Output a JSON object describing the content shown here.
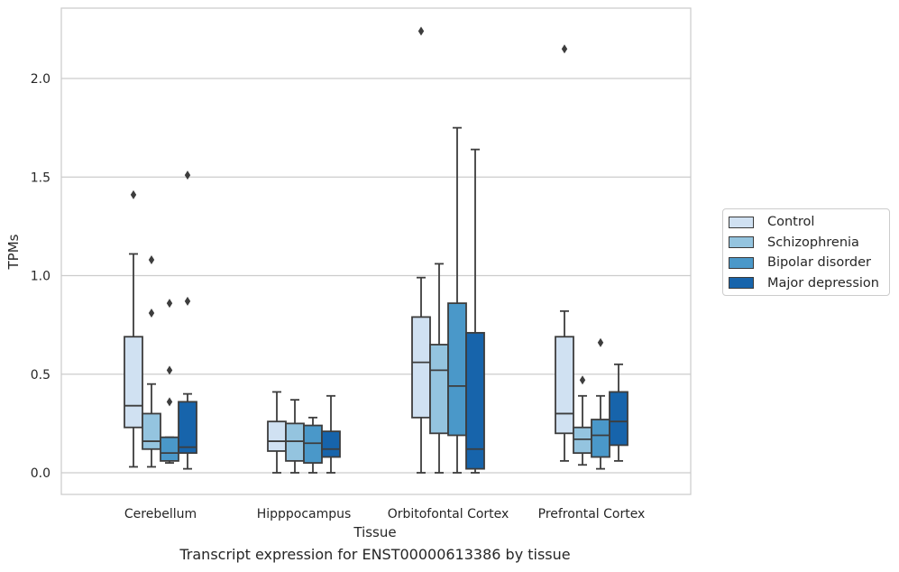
{
  "chart_data": {
    "type": "box",
    "xlabel": "Tissue",
    "ylabel": "TPMs",
    "caption": "Transcript expression for ENST00000613386 by tissue",
    "ylim": [
      -0.11,
      2.36
    ],
    "yticks": [
      "0.0",
      "0.5",
      "1.0",
      "1.5",
      "2.0"
    ],
    "grid": "horizontal",
    "legend_position": "right",
    "categories": [
      "Cerebellum",
      "Hipppocampus",
      "Orbitofontal Cortex",
      "Prefrontal Cortex"
    ],
    "series": [
      {
        "name": "Control",
        "color": "#d0e1f2",
        "boxes": [
          {
            "whisker_low": 0.03,
            "q1": 0.23,
            "median": 0.34,
            "q3": 0.69,
            "whisker_high": 1.11,
            "outliers": [
              1.41
            ]
          },
          {
            "whisker_low": 0.0,
            "q1": 0.11,
            "median": 0.16,
            "q3": 0.26,
            "whisker_high": 0.41,
            "outliers": []
          },
          {
            "whisker_low": 0.0,
            "q1": 0.28,
            "median": 0.56,
            "q3": 0.79,
            "whisker_high": 0.99,
            "outliers": [
              2.24
            ]
          },
          {
            "whisker_low": 0.06,
            "q1": 0.2,
            "median": 0.3,
            "q3": 0.69,
            "whisker_high": 0.82,
            "outliers": [
              2.15
            ]
          }
        ]
      },
      {
        "name": "Schizophrenia",
        "color": "#94c4df",
        "boxes": [
          {
            "whisker_low": 0.03,
            "q1": 0.12,
            "median": 0.16,
            "q3": 0.3,
            "whisker_high": 0.45,
            "outliers": [
              1.08,
              0.81
            ]
          },
          {
            "whisker_low": 0.0,
            "q1": 0.06,
            "median": 0.16,
            "q3": 0.25,
            "whisker_high": 0.37,
            "outliers": []
          },
          {
            "whisker_low": 0.0,
            "q1": 0.2,
            "median": 0.52,
            "q3": 0.65,
            "whisker_high": 1.06,
            "outliers": []
          },
          {
            "whisker_low": 0.04,
            "q1": 0.1,
            "median": 0.17,
            "q3": 0.23,
            "whisker_high": 0.39,
            "outliers": [
              0.47
            ]
          }
        ]
      },
      {
        "name": "Bipolar disorder",
        "color": "#4a98c9",
        "boxes": [
          {
            "whisker_low": 0.05,
            "q1": 0.06,
            "median": 0.1,
            "q3": 0.18,
            "whisker_high": 0.18,
            "outliers": [
              0.86,
              0.52,
              0.36
            ]
          },
          {
            "whisker_low": 0.0,
            "q1": 0.05,
            "median": 0.15,
            "q3": 0.24,
            "whisker_high": 0.28,
            "outliers": []
          },
          {
            "whisker_low": 0.0,
            "q1": 0.19,
            "median": 0.44,
            "q3": 0.86,
            "whisker_high": 1.75,
            "outliers": []
          },
          {
            "whisker_low": 0.02,
            "q1": 0.08,
            "median": 0.19,
            "q3": 0.27,
            "whisker_high": 0.39,
            "outliers": [
              0.66
            ]
          }
        ]
      },
      {
        "name": "Major depression",
        "color": "#1764ab",
        "boxes": [
          {
            "whisker_low": 0.02,
            "q1": 0.1,
            "median": 0.13,
            "q3": 0.36,
            "whisker_high": 0.4,
            "outliers": [
              1.51,
              0.87
            ]
          },
          {
            "whisker_low": 0.0,
            "q1": 0.08,
            "median": 0.12,
            "q3": 0.21,
            "whisker_high": 0.39,
            "outliers": []
          },
          {
            "whisker_low": 0.0,
            "q1": 0.02,
            "median": 0.12,
            "q3": 0.71,
            "whisker_high": 1.64,
            "outliers": []
          },
          {
            "whisker_low": 0.06,
            "q1": 0.14,
            "median": 0.26,
            "q3": 0.41,
            "whisker_high": 0.55,
            "outliers": []
          }
        ]
      }
    ]
  }
}
